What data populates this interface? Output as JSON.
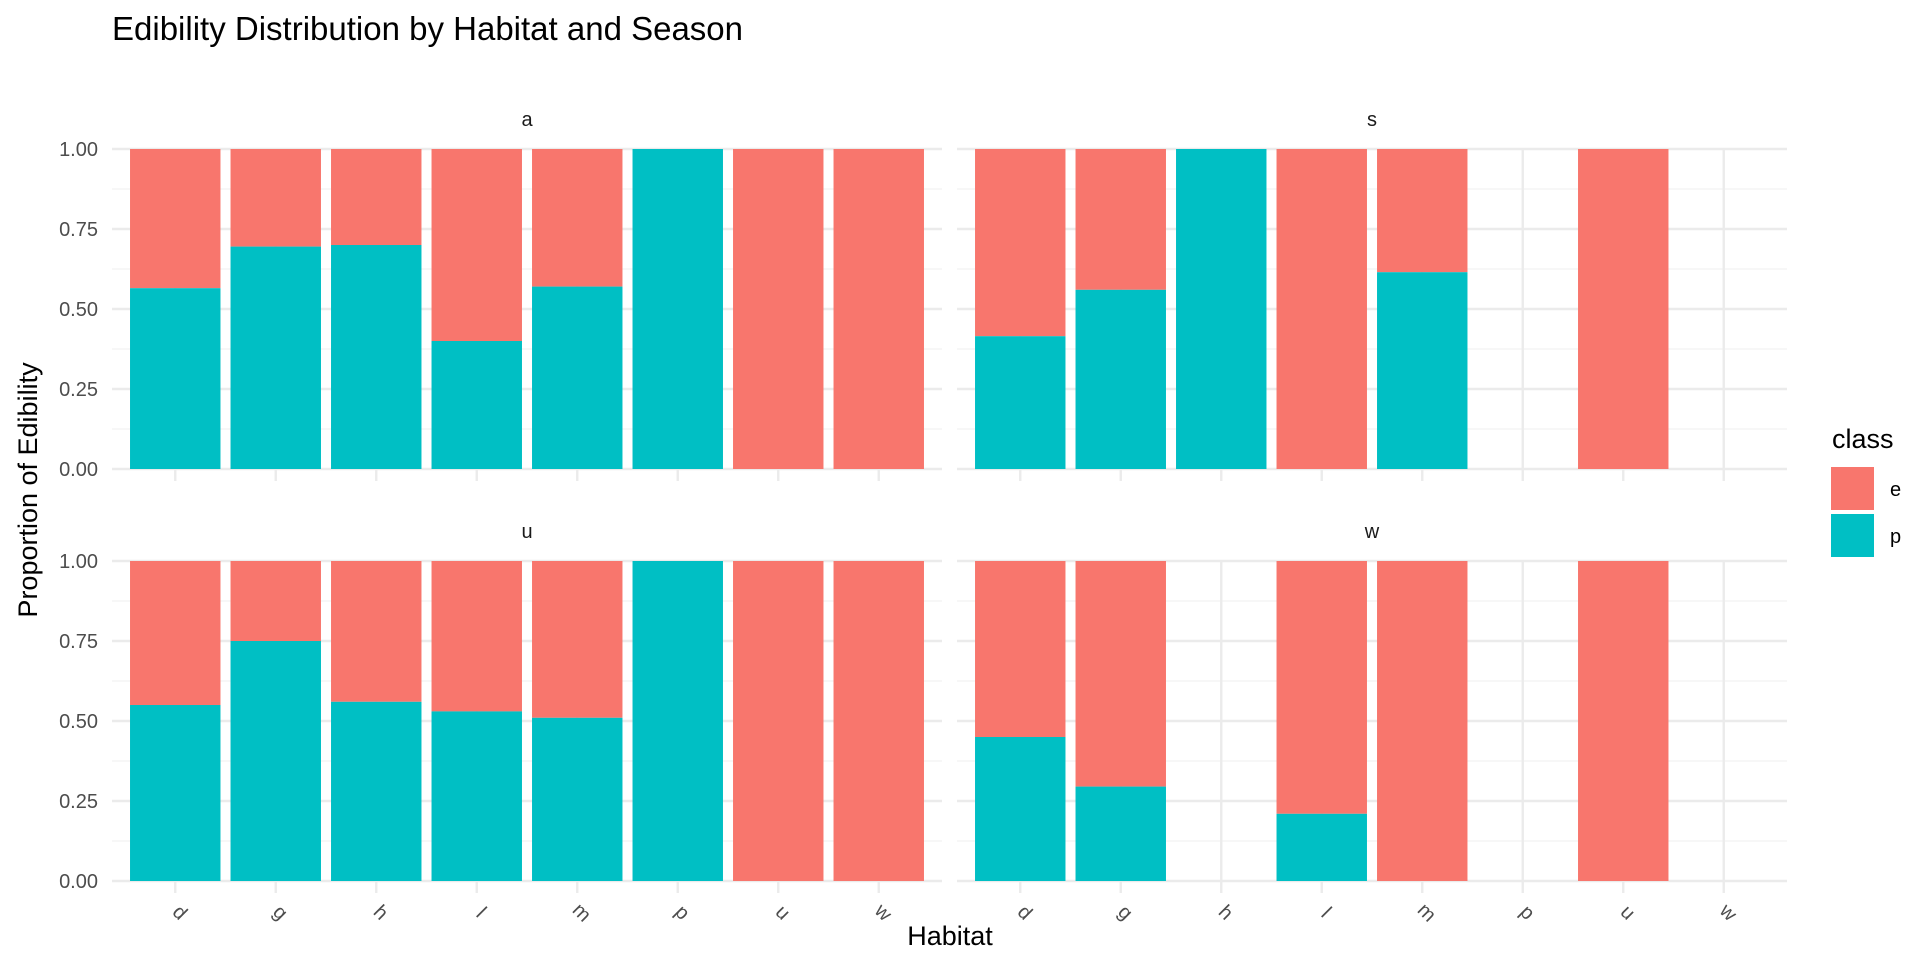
{
  "chart_data": {
    "type": "bar",
    "stacked": "fill",
    "title": "Edibility Distribution by Habitat and Season",
    "xlabel": "Habitat",
    "ylabel": "Proportion of Edibility",
    "ylim": [
      0,
      1
    ],
    "yticks": [
      "0.00",
      "0.25",
      "0.50",
      "0.75",
      "1.00"
    ],
    "categories": [
      "d",
      "g",
      "h",
      "l",
      "m",
      "p",
      "u",
      "w"
    ],
    "grid": true,
    "legend": {
      "title": "class",
      "position": "right",
      "entries": [
        {
          "key": "e",
          "label": "e",
          "color": "#F8766D"
        },
        {
          "key": "p",
          "label": "p",
          "color": "#00BFC4"
        }
      ]
    },
    "facets": [
      {
        "label": "a",
        "p": [
          0.565,
          0.695,
          0.7,
          0.4,
          0.57,
          1.0,
          0.0,
          0.0
        ],
        "present": [
          true,
          true,
          true,
          true,
          true,
          true,
          true,
          true
        ]
      },
      {
        "label": "s",
        "p": [
          0.415,
          0.56,
          1.0,
          0.0,
          0.615,
          null,
          0.0,
          null
        ],
        "present": [
          true,
          true,
          true,
          true,
          true,
          false,
          true,
          false
        ]
      },
      {
        "label": "u",
        "p": [
          0.55,
          0.75,
          0.56,
          0.53,
          0.51,
          1.0,
          0.0,
          0.0
        ],
        "present": [
          true,
          true,
          true,
          true,
          true,
          true,
          true,
          true
        ]
      },
      {
        "label": "w",
        "p": [
          0.45,
          0.295,
          null,
          0.21,
          0.0,
          null,
          0.0,
          null
        ],
        "present": [
          true,
          true,
          false,
          true,
          true,
          false,
          true,
          false
        ]
      }
    ]
  }
}
